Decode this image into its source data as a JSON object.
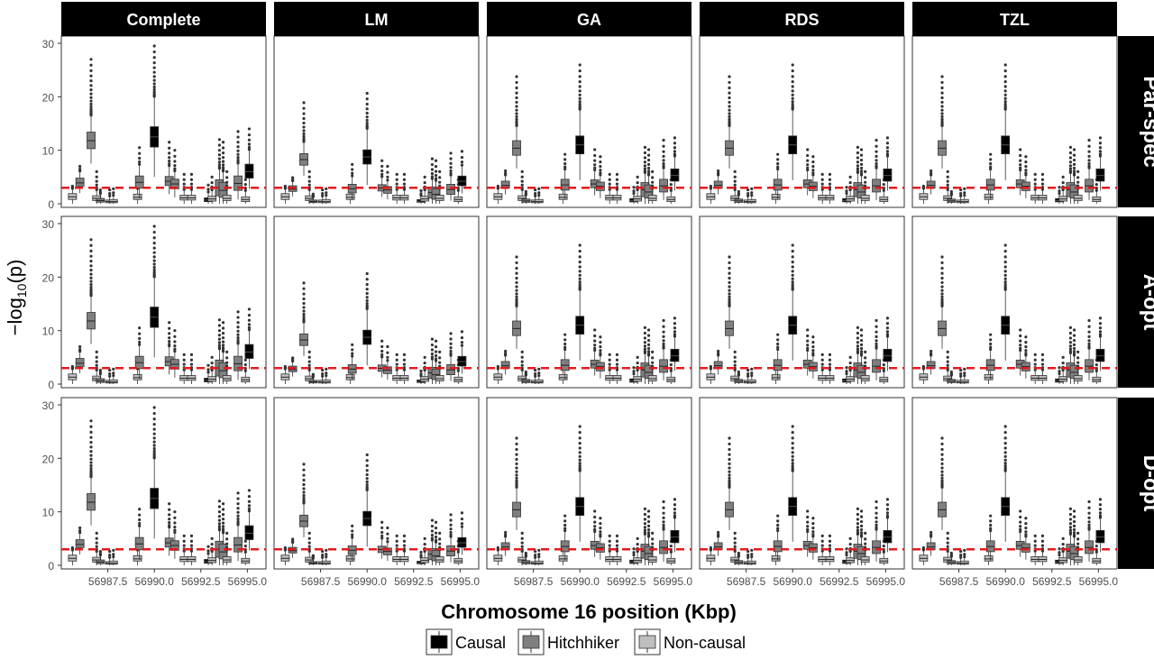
{
  "chart_data": {
    "type": "boxplot",
    "facet_columns": [
      "Complete",
      "LM",
      "GA",
      "RDS",
      "TZL"
    ],
    "facet_rows": [
      "Par-spec",
      "A-opt",
      "D-opt"
    ],
    "xlabel": "Chromosome 16 position (Kbp)",
    "ylabel_base": "−log",
    "ylabel_sub": "10",
    "ylabel_tail": "(p)",
    "ylim": [
      0,
      30
    ],
    "y_ticks": [
      0,
      10,
      20,
      30
    ],
    "xlim": [
      56985.0,
      56996.0
    ],
    "x_ticks": [
      56987.5,
      56990.0,
      56992.5,
      56995.0
    ],
    "x_tick_labels": [
      "56987.5",
      "56990.0",
      "56992.5",
      "56995.0"
    ],
    "threshold": 3.0,
    "threshold_color": "#e41a1c",
    "grid": false,
    "legend": {
      "placement": "bottom",
      "entries": [
        {
          "name": "Causal",
          "color": "#000000"
        },
        {
          "name": "Hitchhiker",
          "color": "#7f7f7f"
        },
        {
          "name": "Non-causal",
          "color": "#bfbfbf"
        }
      ]
    },
    "snps": [
      {
        "x": 56985.6,
        "group": "Non-causal",
        "q1": 0.8,
        "med": 1.3,
        "q3": 1.9,
        "wlo": 0.0,
        "whi": 2.8,
        "max": 3.3
      },
      {
        "x": 56986.0,
        "group": "Hitchhiker",
        "q1": 3.3,
        "med": 3.9,
        "q3": 4.8,
        "wlo": 2.0,
        "whi": 6.0,
        "max": 7.0
      },
      {
        "x": 56986.6,
        "group": "Hitchhiker",
        "q1": 10.3,
        "med": 11.8,
        "q3": 13.4,
        "wlo": 7.5,
        "whi": 16.5,
        "max": 27.0
      },
      {
        "x": 56986.9,
        "group": "Non-causal",
        "q1": 0.6,
        "med": 1.0,
        "q3": 1.5,
        "wlo": 0.0,
        "whi": 2.5,
        "max": 6.0
      },
      {
        "x": 56987.1,
        "group": "Hitchhiker",
        "q1": 0.3,
        "med": 0.6,
        "q3": 1.0,
        "wlo": 0.0,
        "whi": 1.8,
        "max": 2.6
      },
      {
        "x": 56987.6,
        "group": "Non-causal",
        "q1": 0.2,
        "med": 0.4,
        "q3": 0.7,
        "wlo": 0.0,
        "whi": 1.3,
        "max": 2.6
      },
      {
        "x": 56987.8,
        "group": "Non-causal",
        "q1": 0.2,
        "med": 0.4,
        "q3": 0.8,
        "wlo": 0.0,
        "whi": 1.4,
        "max": 2.8
      },
      {
        "x": 56989.1,
        "group": "Non-causal",
        "q1": 0.8,
        "med": 1.2,
        "q3": 1.8,
        "wlo": 0.0,
        "whi": 2.8,
        "max": 3.3
      },
      {
        "x": 56989.2,
        "group": "Hitchhiker",
        "q1": 2.9,
        "med": 4.0,
        "q3": 5.2,
        "wlo": 1.0,
        "whi": 7.2,
        "max": 10.5
      },
      {
        "x": 56990.0,
        "group": "Causal",
        "q1": 10.6,
        "med": 12.5,
        "q3": 14.4,
        "wlo": 5.0,
        "whi": 20.0,
        "max": 29.5
      },
      {
        "x": 56990.8,
        "group": "Hitchhiker",
        "q1": 3.4,
        "med": 4.2,
        "q3": 5.1,
        "wlo": 1.8,
        "whi": 7.0,
        "max": 11.5
      },
      {
        "x": 56991.1,
        "group": "Hitchhiker",
        "q1": 2.8,
        "med": 3.7,
        "q3": 4.6,
        "wlo": 1.2,
        "whi": 6.0,
        "max": 10.0
      },
      {
        "x": 56991.6,
        "group": "Non-causal",
        "q1": 0.7,
        "med": 1.1,
        "q3": 1.6,
        "wlo": 0.0,
        "whi": 2.5,
        "max": 5.5
      },
      {
        "x": 56992.0,
        "group": "Non-causal",
        "q1": 0.7,
        "med": 1.1,
        "q3": 1.6,
        "wlo": 0.0,
        "whi": 2.5,
        "max": 5.5
      },
      {
        "x": 56992.9,
        "group": "Causal",
        "q1": 0.4,
        "med": 0.7,
        "q3": 1.1,
        "wlo": 0.0,
        "whi": 2.0,
        "max": 3.5
      },
      {
        "x": 56993.1,
        "group": "Non-causal",
        "q1": 0.5,
        "med": 0.9,
        "q3": 1.4,
        "wlo": 0.0,
        "whi": 2.4,
        "max": 5.0
      },
      {
        "x": 56993.5,
        "group": "Hitchhiker",
        "q1": 1.5,
        "med": 3.0,
        "q3": 4.5,
        "wlo": 0.0,
        "whi": 6.5,
        "max": 12.0
      },
      {
        "x": 56993.7,
        "group": "Hitchhiker",
        "q1": 1.2,
        "med": 2.5,
        "q3": 4.0,
        "wlo": 0.0,
        "whi": 6.0,
        "max": 11.5
      },
      {
        "x": 56993.9,
        "group": "Non-causal",
        "q1": 0.6,
        "med": 1.0,
        "q3": 1.6,
        "wlo": 0.0,
        "whi": 2.7,
        "max": 6.0
      },
      {
        "x": 56994.5,
        "group": "Hitchhiker",
        "q1": 2.5,
        "med": 3.8,
        "q3": 5.2,
        "wlo": 0.8,
        "whi": 7.5,
        "max": 13.5
      },
      {
        "x": 56994.9,
        "group": "Non-causal",
        "q1": 0.4,
        "med": 0.8,
        "q3": 1.3,
        "wlo": 0.0,
        "whi": 2.3,
        "max": 4.5
      },
      {
        "x": 56995.1,
        "group": "Causal",
        "q1": 4.8,
        "med": 6.0,
        "q3": 7.4,
        "wlo": 2.8,
        "whi": 10.0,
        "max": 14.0
      }
    ],
    "panel_scale": {
      "Complete": 1.0,
      "LM": 0.7,
      "GA": 0.88,
      "RDS": 0.88,
      "TZL": 0.88
    }
  }
}
